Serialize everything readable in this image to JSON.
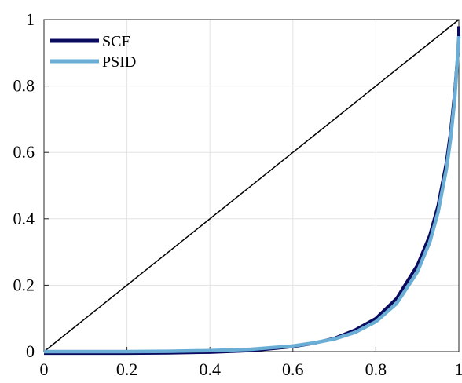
{
  "chart_data": {
    "type": "line",
    "title": "",
    "xlabel": "",
    "ylabel": "",
    "xlim": [
      0,
      1
    ],
    "ylim": [
      0,
      1
    ],
    "xticks": [
      0,
      0.2,
      0.4,
      0.6,
      0.8,
      1
    ],
    "yticks": [
      0,
      0.2,
      0.4,
      0.6,
      0.8,
      1
    ],
    "xtick_labels": [
      "0",
      "0.2",
      "0.4",
      "0.6",
      "0.8",
      "1"
    ],
    "ytick_labels": [
      "0",
      "0.2",
      "0.4",
      "0.6",
      "0.8",
      "1"
    ],
    "grid": true,
    "legend_position": "top-left",
    "reference_line": {
      "x": [
        0,
        1
      ],
      "y": [
        0,
        1
      ],
      "color": "#000000"
    },
    "series": [
      {
        "name": "SCF",
        "color": "#0a0a5e",
        "x": [
          0,
          0.1,
          0.2,
          0.3,
          0.4,
          0.5,
          0.6,
          0.65,
          0.7,
          0.75,
          0.8,
          0.85,
          0.9,
          0.93,
          0.95,
          0.97,
          0.98,
          0.99,
          0.995,
          1.0,
          1.0
        ],
        "y": [
          -0.005,
          -0.005,
          -0.005,
          -0.004,
          -0.002,
          0.003,
          0.015,
          0.025,
          0.04,
          0.065,
          0.1,
          0.16,
          0.26,
          0.35,
          0.44,
          0.57,
          0.66,
          0.78,
          0.86,
          0.92,
          0.98
        ]
      },
      {
        "name": "PSID",
        "color": "#6aaed6",
        "x": [
          0,
          0.1,
          0.2,
          0.3,
          0.4,
          0.5,
          0.6,
          0.65,
          0.7,
          0.75,
          0.8,
          0.85,
          0.9,
          0.93,
          0.95,
          0.97,
          0.98,
          0.99,
          0.995,
          1.0
        ],
        "y": [
          0.0,
          0.0,
          0.0,
          0.001,
          0.003,
          0.007,
          0.017,
          0.026,
          0.038,
          0.058,
          0.09,
          0.145,
          0.24,
          0.33,
          0.42,
          0.55,
          0.64,
          0.76,
          0.85,
          0.95
        ]
      }
    ]
  }
}
